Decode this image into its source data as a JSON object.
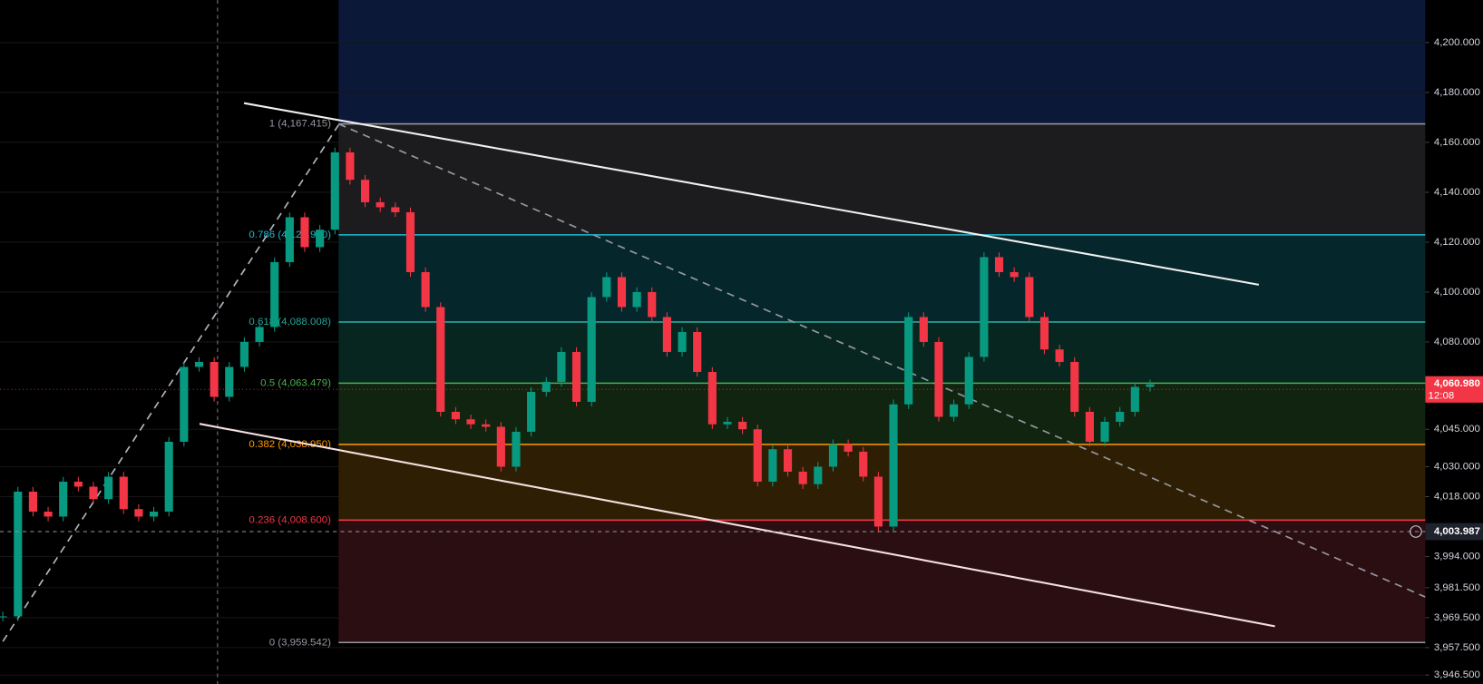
{
  "chart_data": {
    "type": "candlestick",
    "values": [
      3970,
      4020,
      4012,
      4010,
      4024,
      4022,
      4017,
      4026,
      4013,
      4010,
      4012,
      4040,
      4070,
      4072,
      4058,
      4070,
      4080,
      4086,
      4112,
      4130,
      4118,
      4125,
      4156,
      4145,
      4136,
      4134,
      4132,
      4108,
      4094,
      4052,
      4049,
      4047,
      4046,
      4030,
      4044,
      4060,
      4064,
      4076,
      4056,
      4098,
      4106,
      4094,
      4100,
      4090,
      4076,
      4084,
      4068,
      4047,
      4048,
      4045,
      4024,
      4037,
      4028,
      4023,
      4030,
      4039,
      4036,
      4026,
      4006,
      4055,
      4090,
      4080,
      4050,
      4055,
      4074,
      4114,
      4108,
      4106,
      4090,
      4077,
      4072,
      4052,
      4040,
      4048,
      4052,
      4062,
      4063
    ],
    "up_color": "#089981",
    "down_color": "#f23645",
    "ylim": [
      3942.9,
      4217.07
    ],
    "yticks": [
      {
        "value": 4200,
        "label": "4,200.000"
      },
      {
        "value": 4180,
        "label": "4,180.000"
      },
      {
        "value": 4160,
        "label": "4,160.000"
      },
      {
        "value": 4140,
        "label": "4,140.000"
      },
      {
        "value": 4120,
        "label": "4,120.000"
      },
      {
        "value": 4100,
        "label": "4,100.000"
      },
      {
        "value": 4080,
        "label": "4,080.000"
      },
      {
        "value": 4045,
        "label": "4,045.000"
      },
      {
        "value": 4030,
        "label": "4,030.000"
      },
      {
        "value": 4018,
        "label": "4,018.000"
      },
      {
        "value": 3994,
        "label": "3,994.000"
      },
      {
        "value": 3981.5,
        "label": "3,981.500"
      },
      {
        "value": 3969.5,
        "label": "3,969.500"
      },
      {
        "value": 3957.5,
        "label": "3,957.500"
      },
      {
        "value": 3946.5,
        "label": "3,946.500"
      }
    ],
    "grid": true,
    "fib_levels": [
      {
        "label": "1 (4,167.415)",
        "value": 4167.415,
        "color": "#9598a1",
        "fill": "#1c1c1e"
      },
      {
        "label": "0.786 (4,122.930)",
        "value": 4122.93,
        "color": "#22b8cf",
        "fill": "#05262b"
      },
      {
        "label": "0.618 (4,088.008)",
        "value": 4088.008,
        "color": "#26a69a",
        "fill": "#07261f"
      },
      {
        "label": "0.5 (4,063.479)",
        "value": 4063.479,
        "color": "#4caf50",
        "fill": "#102410"
      },
      {
        "label": "0.382 (4,038.950)",
        "value": 4038.95,
        "color": "#ff9800",
        "fill": "#2e1f04"
      },
      {
        "label": "0.236 (4,008.600)",
        "value": 4008.6,
        "color": "#f23645",
        "fill": "#2a0e12"
      },
      {
        "label": "0 (3,959.542)",
        "value": 3959.542,
        "color": "#9598a1"
      }
    ],
    "last_price": {
      "value": 4060.98,
      "label": "4,060.980"
    },
    "countdown": "12:08",
    "crosshair_price": {
      "value": 4003.987,
      "label": "4,003.987"
    }
  }
}
